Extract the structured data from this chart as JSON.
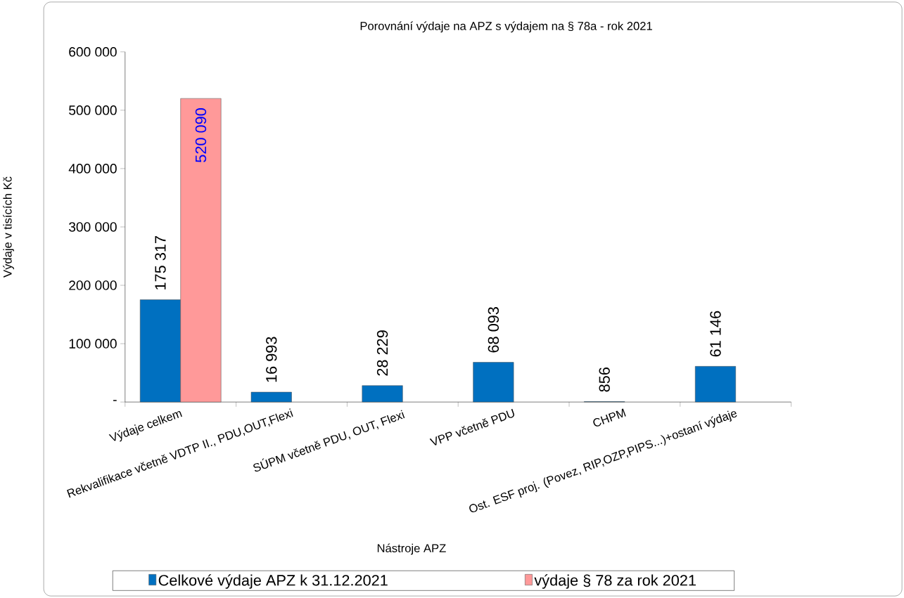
{
  "chart_data": {
    "type": "bar",
    "title": "Porovnání výdaje na APZ s výdajem na  § 78a - rok 2021",
    "xlabel": "Nástroje APZ",
    "ylabel": "Výdaje v tisících Kč",
    "categories": [
      "Výdaje celkem",
      "Rekvalifikace včetně VDTP II., PDU,OUT,Flexi",
      "SÚPM včetně PDU, OUT, Flexi",
      "VPP včetně PDU",
      "CHPM",
      "Ost. ESF proj. (Povez, RIP,OZP,PIPS...)+ostaní výdaje"
    ],
    "series": [
      {
        "name": "Celkové výdaje APZ k 31.12.2021",
        "color": "#0070c0",
        "values": [
          175317,
          16993,
          28229,
          68093,
          856,
          61146
        ],
        "value_labels": [
          "175 317",
          "16 993",
          "28 229",
          "68 093",
          "856",
          "61 146"
        ]
      },
      {
        "name": "výdaje § 78 za rok 2021",
        "color": "#ff9999",
        "values": [
          520090,
          null,
          null,
          null,
          null,
          null
        ],
        "value_labels": [
          "520 090",
          null,
          null,
          null,
          null,
          null
        ]
      }
    ],
    "ylim": [
      0,
      600000
    ],
    "yticks": [
      {
        "value": 0,
        "label": "-"
      },
      {
        "value": 100000,
        "label": "100 000"
      },
      {
        "value": 200000,
        "label": "200 000"
      },
      {
        "value": 300000,
        "label": "300 000"
      },
      {
        "value": 400000,
        "label": "400 000"
      },
      {
        "value": 500000,
        "label": "500 000"
      },
      {
        "value": 600000,
        "label": "600 000"
      }
    ],
    "grid": false,
    "legend": "bottom"
  }
}
